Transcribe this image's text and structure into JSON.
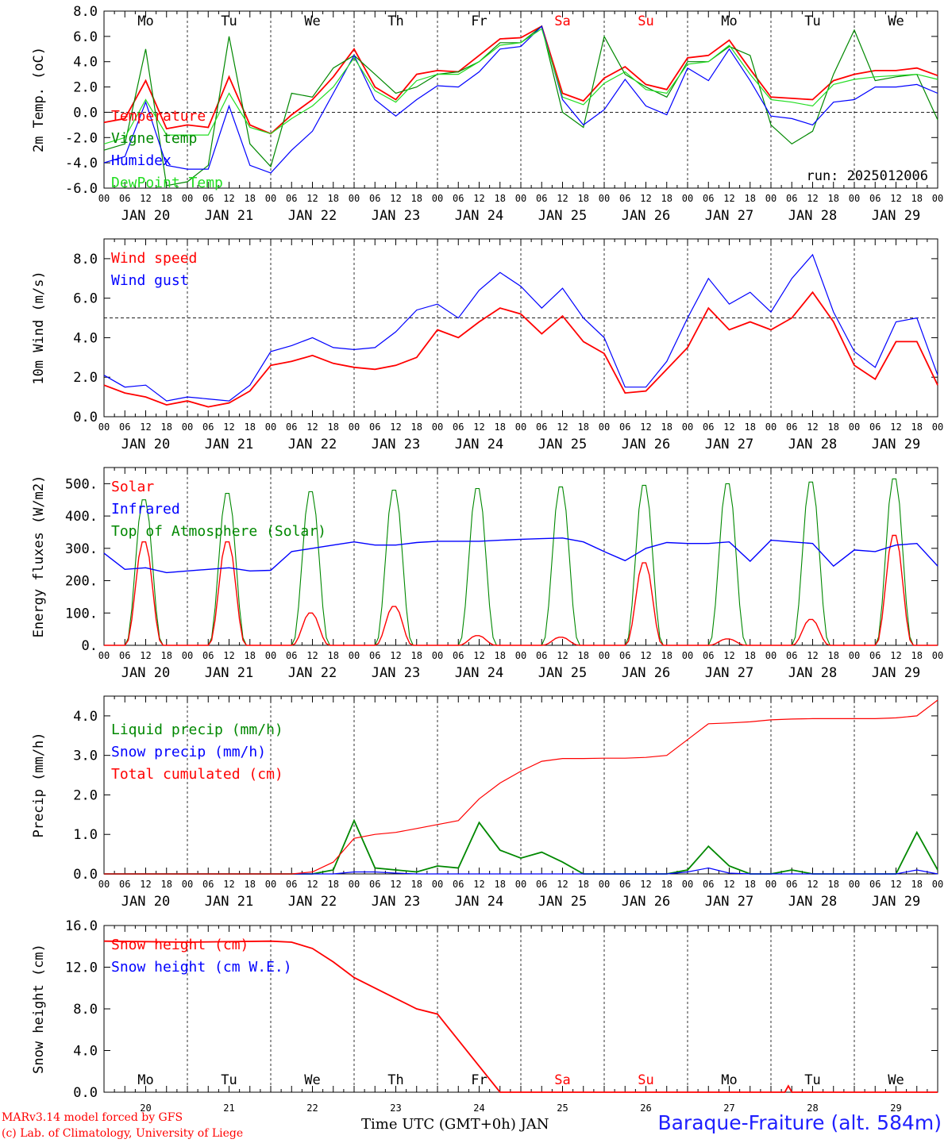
{
  "footer": {
    "credit_line1": "MARv3.14 model forced by GFS",
    "credit_line2": "(c) Lab. of Climatology, University of Liege",
    "time_label": "Time UTC (GMT+0h) JAN",
    "station": "Baraque-Fraiture (alt. 584m)"
  },
  "days": {
    "dates": [
      "JAN 20",
      "JAN 21",
      "JAN 22",
      "JAN 23",
      "JAN 24",
      "JAN 25",
      "JAN 26",
      "JAN 27",
      "JAN 28",
      "JAN 29"
    ],
    "date_numbers": [
      "20",
      "21",
      "22",
      "23",
      "24",
      "25",
      "26",
      "27",
      "28",
      "29"
    ],
    "weekdays": [
      "Mo",
      "Tu",
      "We",
      "Th",
      "Fr",
      "Sa",
      "Su",
      "Mo",
      "Tu",
      "We"
    ],
    "weekend_flags": [
      false,
      false,
      false,
      false,
      false,
      true,
      true,
      false,
      false,
      false
    ],
    "hour_ticks": [
      "00",
      "06",
      "12",
      "18"
    ],
    "final_tick": "00"
  },
  "colors": {
    "red": "#ff0000",
    "green": "#008800",
    "blue": "#0000ff",
    "lightgreen": "#22dd22",
    "axis": "#000000"
  },
  "chart_data": [
    {
      "type": "line",
      "ylabel": "2m Temp. (oC)",
      "ylim": [
        -6,
        8
      ],
      "yticks": [
        "-6.0",
        "-4.0",
        "-2.0",
        "0.0",
        "2.0",
        "4.0",
        "6.0",
        "8.0"
      ],
      "ref_line": 0,
      "annotation": "run: 2025012006",
      "x": [
        0,
        6,
        12,
        18,
        24,
        30,
        36,
        42,
        48,
        54,
        60,
        66,
        72,
        78,
        84,
        90,
        96,
        102,
        108,
        114,
        120,
        126,
        132,
        138,
        144,
        150,
        156,
        162,
        168,
        174,
        180,
        186,
        192,
        198,
        204,
        210,
        216,
        222,
        228,
        234,
        240
      ],
      "series": [
        {
          "name": "Temperature",
          "color": "red",
          "values": [
            -0.8,
            -0.5,
            2.5,
            -1.3,
            -1.0,
            -1.2,
            2.8,
            -1.0,
            -1.7,
            -0.2,
            1.0,
            2.8,
            5.0,
            2.0,
            1.0,
            3.0,
            3.3,
            3.2,
            4.5,
            5.8,
            5.9,
            6.8,
            1.5,
            0.9,
            2.7,
            3.6,
            2.2,
            1.8,
            4.3,
            4.5,
            5.7,
            3.4,
            1.2,
            1.1,
            1.0,
            2.5,
            3.0,
            3.3,
            3.3,
            3.5,
            2.9
          ]
        },
        {
          "name": "Vigne temp",
          "color": "green",
          "values": [
            -3.0,
            -2.5,
            5.0,
            -5.8,
            -5.5,
            -4.2,
            6.0,
            -2.5,
            -4.3,
            1.5,
            1.2,
            3.5,
            4.5,
            3.0,
            1.5,
            2.0,
            3.0,
            3.2,
            4.0,
            5.5,
            5.5,
            6.8,
            0.0,
            -1.2,
            6.0,
            3.0,
            2.0,
            1.2,
            4.0,
            4.0,
            5.2,
            4.5,
            -1.0,
            -2.5,
            -1.5,
            3.0,
            6.5,
            2.5,
            2.8,
            3.0,
            -0.6
          ]
        },
        {
          "name": "Humidex",
          "color": "blue",
          "values": [
            -4.0,
            -3.5,
            0.8,
            -4.2,
            -4.5,
            -4.5,
            0.5,
            -4.2,
            -4.8,
            -3.0,
            -1.5,
            1.5,
            4.5,
            1.0,
            -0.3,
            1.0,
            2.1,
            2.0,
            3.2,
            5.0,
            5.2,
            6.8,
            1.0,
            -1.0,
            0.2,
            2.6,
            0.5,
            -0.2,
            3.5,
            2.5,
            5.0,
            2.5,
            -0.3,
            -0.5,
            -1.0,
            0.8,
            1.0,
            2.0,
            2.0,
            2.2,
            1.5
          ]
        },
        {
          "name": "DewPoint Temp",
          "color": "lightgreen",
          "values": [
            -2.5,
            -2.0,
            1.0,
            -1.8,
            -1.8,
            -1.8,
            1.5,
            -1.2,
            -1.7,
            -0.5,
            0.5,
            2.0,
            4.3,
            1.7,
            0.8,
            2.5,
            3.0,
            3.0,
            4.0,
            5.3,
            5.5,
            6.6,
            1.2,
            0.6,
            2.3,
            3.2,
            1.8,
            1.5,
            3.8,
            4.0,
            5.3,
            3.0,
            1.0,
            0.8,
            0.5,
            2.2,
            2.6,
            2.8,
            2.9,
            3.0,
            2.6
          ]
        }
      ]
    },
    {
      "type": "line",
      "ylabel": "10m Wind (m/s)",
      "ylim": [
        0,
        9
      ],
      "yticks": [
        "0.0",
        "2.0",
        "4.0",
        "6.0",
        "8.0"
      ],
      "ref_line": 5,
      "x": [
        0,
        6,
        12,
        18,
        24,
        30,
        36,
        42,
        48,
        54,
        60,
        66,
        72,
        78,
        84,
        90,
        96,
        102,
        108,
        114,
        120,
        126,
        132,
        138,
        144,
        150,
        156,
        162,
        168,
        174,
        180,
        186,
        192,
        198,
        204,
        210,
        216,
        222,
        228,
        234,
        240
      ],
      "series": [
        {
          "name": "Wind speed",
          "color": "red",
          "values": [
            1.6,
            1.2,
            1.0,
            0.6,
            0.8,
            0.5,
            0.7,
            1.3,
            2.6,
            2.8,
            3.1,
            2.7,
            2.5,
            2.4,
            2.6,
            3.0,
            4.4,
            4.0,
            4.8,
            5.5,
            5.2,
            4.2,
            5.1,
            3.8,
            3.2,
            1.2,
            1.3,
            2.4,
            3.5,
            5.5,
            4.4,
            4.8,
            4.4,
            5.0,
            6.3,
            4.8,
            2.6,
            1.9,
            3.8,
            3.8,
            1.6
          ]
        },
        {
          "name": "Wind gust",
          "color": "blue",
          "values": [
            2.1,
            1.5,
            1.6,
            0.8,
            1.0,
            0.9,
            0.8,
            1.6,
            3.3,
            3.6,
            4.0,
            3.5,
            3.4,
            3.5,
            4.3,
            5.4,
            5.7,
            5.0,
            6.4,
            7.3,
            6.6,
            5.5,
            6.5,
            5.0,
            4.0,
            1.5,
            1.5,
            2.8,
            5.0,
            7.0,
            5.7,
            6.3,
            5.3,
            7.0,
            8.2,
            5.3,
            3.3,
            2.5,
            4.8,
            5.0,
            2.1
          ]
        }
      ]
    },
    {
      "type": "line",
      "ylabel": "Energy fluxes (W/m2)",
      "ylim": [
        0,
        550
      ],
      "yticks": [
        "0.",
        "100.",
        "200.",
        "300.",
        "400.",
        "500."
      ],
      "x_solar": [
        0,
        6,
        7,
        8,
        9,
        10,
        11,
        12,
        13,
        14,
        15,
        16,
        17,
        24
      ],
      "solar_days": [
        {
          "toa": 450,
          "solar": 320
        },
        {
          "toa": 470,
          "solar": 320
        },
        {
          "toa": 475,
          "solar": 100
        },
        {
          "toa": 480,
          "solar": 120
        },
        {
          "toa": 485,
          "solar": 30
        },
        {
          "toa": 490,
          "solar": 25
        },
        {
          "toa": 495,
          "solar": 255
        },
        {
          "toa": 500,
          "solar": 20
        },
        {
          "toa": 505,
          "solar": 80
        },
        {
          "toa": 515,
          "solar": 340
        }
      ],
      "series": [
        {
          "name": "Solar",
          "color": "red"
        },
        {
          "name": "Infrared",
          "color": "blue",
          "x": [
            0,
            6,
            12,
            18,
            24,
            30,
            36,
            42,
            48,
            54,
            60,
            66,
            72,
            78,
            84,
            90,
            96,
            102,
            108,
            114,
            120,
            126,
            132,
            138,
            144,
            150,
            156,
            162,
            168,
            174,
            180,
            186,
            192,
            198,
            204,
            210,
            216,
            222,
            228,
            234,
            240
          ],
          "values": [
            285,
            235,
            240,
            225,
            230,
            235,
            240,
            230,
            232,
            290,
            300,
            310,
            320,
            310,
            310,
            318,
            322,
            322,
            322,
            325,
            328,
            330,
            332,
            320,
            290,
            262,
            300,
            318,
            315,
            315,
            320,
            260,
            325,
            320,
            315,
            245,
            295,
            290,
            310,
            315,
            245
          ]
        },
        {
          "name": "Top of Atmosphere (Solar)",
          "color": "green"
        }
      ]
    },
    {
      "type": "line",
      "ylabel": "Precip (mm/h)",
      "ylim": [
        0,
        4.5
      ],
      "yticks": [
        "0.0",
        "1.0",
        "2.0",
        "3.0",
        "4.0"
      ],
      "x": [
        0,
        6,
        12,
        18,
        24,
        30,
        36,
        42,
        48,
        54,
        60,
        66,
        72,
        78,
        84,
        90,
        96,
        102,
        108,
        114,
        120,
        126,
        132,
        138,
        144,
        150,
        156,
        162,
        168,
        174,
        180,
        186,
        192,
        198,
        204,
        210,
        216,
        222,
        228,
        234,
        240
      ],
      "series": [
        {
          "name": "Liquid precip (mm/h)",
          "color": "green",
          "values": [
            0,
            0,
            0,
            0,
            0,
            0,
            0,
            0,
            0,
            0,
            0,
            0.1,
            1.35,
            0.15,
            0.1,
            0.05,
            0.2,
            0.15,
            1.3,
            0.6,
            0.4,
            0.55,
            0.3,
            0,
            0,
            0,
            0,
            0,
            0.1,
            0.7,
            0.2,
            0,
            0,
            0.1,
            0,
            0,
            0,
            0,
            0,
            1.05,
            0.1
          ]
        },
        {
          "name": "Snow precip (mm/h)",
          "color": "blue",
          "values": [
            0,
            0,
            0,
            0,
            0,
            0,
            0,
            0,
            0,
            0,
            0,
            0,
            0.05,
            0.05,
            0.02,
            0,
            0,
            0,
            0,
            0,
            0,
            0,
            0,
            0,
            0,
            0,
            0,
            0,
            0.05,
            0.15,
            0.02,
            0,
            0,
            0,
            0,
            0,
            0,
            0,
            0,
            0.1,
            0
          ]
        },
        {
          "name": "Total cumulated (cm)",
          "color": "red",
          "values": [
            0,
            0,
            0,
            0,
            0,
            0,
            0,
            0,
            0,
            0,
            0.05,
            0.3,
            0.9,
            1.0,
            1.05,
            1.15,
            1.25,
            1.35,
            1.9,
            2.3,
            2.6,
            2.85,
            2.92,
            2.92,
            2.93,
            2.93,
            2.95,
            3.0,
            3.4,
            3.8,
            3.82,
            3.85,
            3.9,
            3.92,
            3.93,
            3.93,
            3.93,
            3.93,
            3.95,
            4.0,
            4.4
          ]
        }
      ]
    },
    {
      "type": "line",
      "ylabel": "Snow height (cm)",
      "ylim": [
        0,
        16
      ],
      "yticks": [
        "0.0",
        "4.0",
        "8.0",
        "12.0",
        "16.0"
      ],
      "x": [
        0,
        24,
        48,
        54,
        60,
        66,
        72,
        78,
        84,
        90,
        96,
        102,
        108,
        114,
        120,
        144,
        168,
        196,
        197,
        198,
        240
      ],
      "series": [
        {
          "name": "Snow height (cm)",
          "color": "red",
          "values": [
            14.5,
            14.4,
            14.5,
            14.4,
            13.8,
            12.5,
            11.0,
            10.0,
            9.0,
            8.0,
            7.5,
            5.0,
            2.5,
            0,
            0,
            0,
            0,
            0,
            0.6,
            0,
            0
          ]
        },
        {
          "name": "Snow height (cm W.E.)",
          "color": "blue"
        }
      ]
    }
  ]
}
